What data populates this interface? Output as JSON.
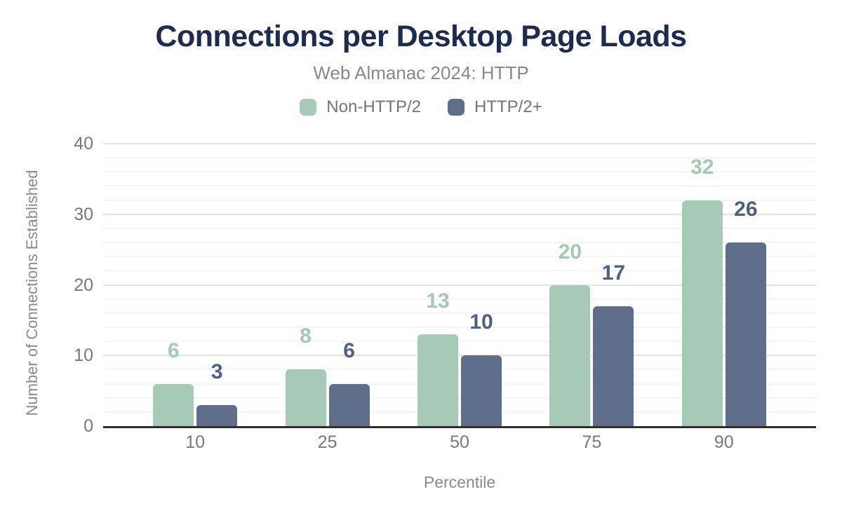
{
  "header": {
    "title": "Connections per Desktop Page Loads",
    "subtitle": "Web Almanac 2024: HTTP"
  },
  "chart_data": {
    "type": "bar",
    "title": "Connections per Desktop Page Loads",
    "subtitle": "Web Almanac 2024: HTTP",
    "categories": [
      "10",
      "25",
      "50",
      "75",
      "90"
    ],
    "series": [
      {
        "name": "Non-HTTP/2",
        "color": "#a7c9b7",
        "label_color": "#a5c8b4",
        "values": [
          6,
          8,
          13,
          20,
          32
        ]
      },
      {
        "name": "HTTP/2+",
        "color": "#5f6e8b",
        "label_color": "#4f5e81",
        "values": [
          3,
          6,
          10,
          17,
          26
        ]
      }
    ],
    "xlabel": "Percentile",
    "ylabel": "Number of Connections Established",
    "ylim": [
      0,
      40
    ],
    "y_major_ticks": [
      0,
      10,
      20,
      30,
      40
    ],
    "y_minor_step": 2,
    "grid": true,
    "legend_position": "top",
    "data_labels": true
  },
  "colors": {
    "title_text": "#1d2b50",
    "subtitle_text": "#86898c",
    "legend_text": "#747474",
    "tick_text": "#75797e",
    "axis_title_text": "#878b90",
    "axis_line": "#2f2f2f",
    "grid_major": "#e3e3e3",
    "grid_minor": "#f4f4f4",
    "background": "#ffffff"
  }
}
